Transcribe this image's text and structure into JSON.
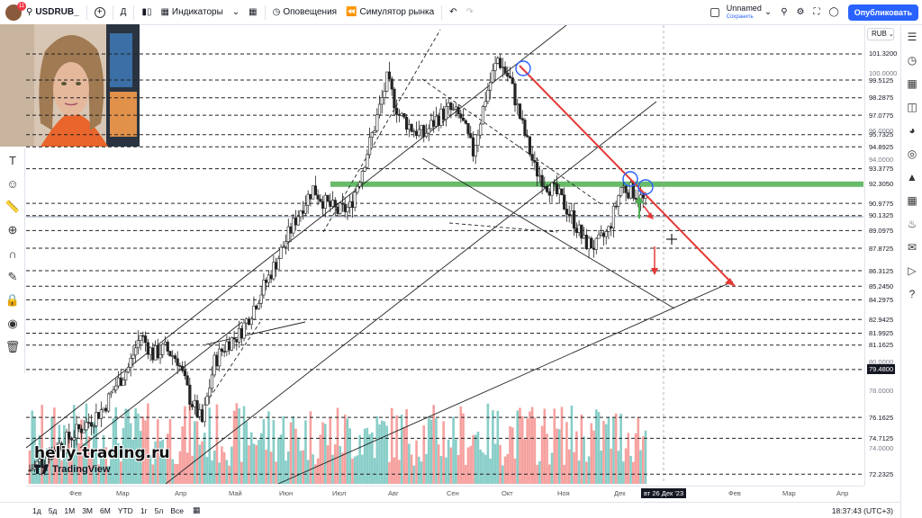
{
  "toolbar": {
    "avatar_badge": "11",
    "symbol": "USDRUB_",
    "add_symbol": "+",
    "interval": "Д",
    "indicators": "Индикаторы",
    "alerts": "Оповещения",
    "replay": "Симулятор рынка",
    "layout_name": "Unnamed",
    "layout_status": "Сохранить",
    "publish": "Опубликовать"
  },
  "price_scale": {
    "currency": "RUB",
    "levels": [
      "101.3200",
      "99.5125",
      "98.2875",
      "97.0775",
      "95.7325",
      "94.8925",
      "93.3775",
      "92.3050",
      "90.9775",
      "90.1325",
      "89.0975",
      "87.8725",
      "86.3125",
      "85.2450",
      "84.2975",
      "82.9425",
      "81.9925",
      "81.1625",
      "79.4800",
      "76.1625",
      "74.7125",
      "72.2325"
    ],
    "ticks": [
      "100.0000",
      "96.0000",
      "94.0000",
      "80.0000",
      "78.0000",
      "74.0000"
    ]
  },
  "time_axis": {
    "labels": [
      "Фев",
      "Мар",
      "Апр",
      "Май",
      "Июн",
      "Июл",
      "Авг",
      "Сен",
      "Окт",
      "Ноя",
      "Дек",
      "Фев",
      "Мар",
      "Апр"
    ],
    "crosshair": "вт 26 Дек '23"
  },
  "bottom": {
    "ranges": [
      "1д",
      "5д",
      "1М",
      "3М",
      "6М",
      "YTD",
      "1г",
      "5л",
      "Все"
    ],
    "clock": "18:37:43 (UTC+3)"
  },
  "watermark": {
    "site": "heliy-trading.ru",
    "logo_text": "TradingView"
  },
  "colors": {
    "accent": "#2962ff",
    "green_level": "#4caf50",
    "red_trend": "#e53935",
    "up_volume": "#26a69a",
    "down_volume": "#ef5350"
  },
  "chart_data": {
    "type": "candlestick",
    "symbol": "USDRUB",
    "ylim": [
      72,
      103
    ],
    "x_months": [
      "Фев",
      "Мар",
      "Апр",
      "Май",
      "Июн",
      "Июл",
      "Авг",
      "Сен",
      "Окт",
      "Ноя",
      "Дек"
    ],
    "close_path": [
      72.5,
      73.2,
      74.0,
      74.6,
      75.3,
      76.0,
      76.8,
      78.4,
      79.6,
      81.9,
      80.5,
      80.9,
      80.2,
      77.5,
      75.8,
      80.0,
      81.3,
      81.9,
      83.5,
      85.2,
      86.9,
      88.8,
      90.6,
      92.0,
      91.0,
      90.4,
      90.7,
      93.4,
      96.3,
      99.5,
      97.1,
      96.2,
      95.7,
      96.8,
      97.5,
      96.9,
      94.5,
      98.3,
      101.0,
      99.5,
      96.3,
      93.4,
      92.3,
      91.4,
      90.1,
      88.3,
      88.0,
      89.1,
      92.1,
      91.8,
      91.0
    ],
    "horizontal_levels": [
      101.32,
      99.5125,
      98.2875,
      97.0775,
      95.7325,
      94.8925,
      93.3775,
      92.305,
      90.9775,
      90.1325,
      89.0975,
      87.8725,
      86.3125,
      85.245,
      84.2975,
      82.9425,
      81.9925,
      81.1625,
      79.48,
      76.1625,
      74.7125,
      72.2325
    ],
    "key_level": 92.305
  }
}
